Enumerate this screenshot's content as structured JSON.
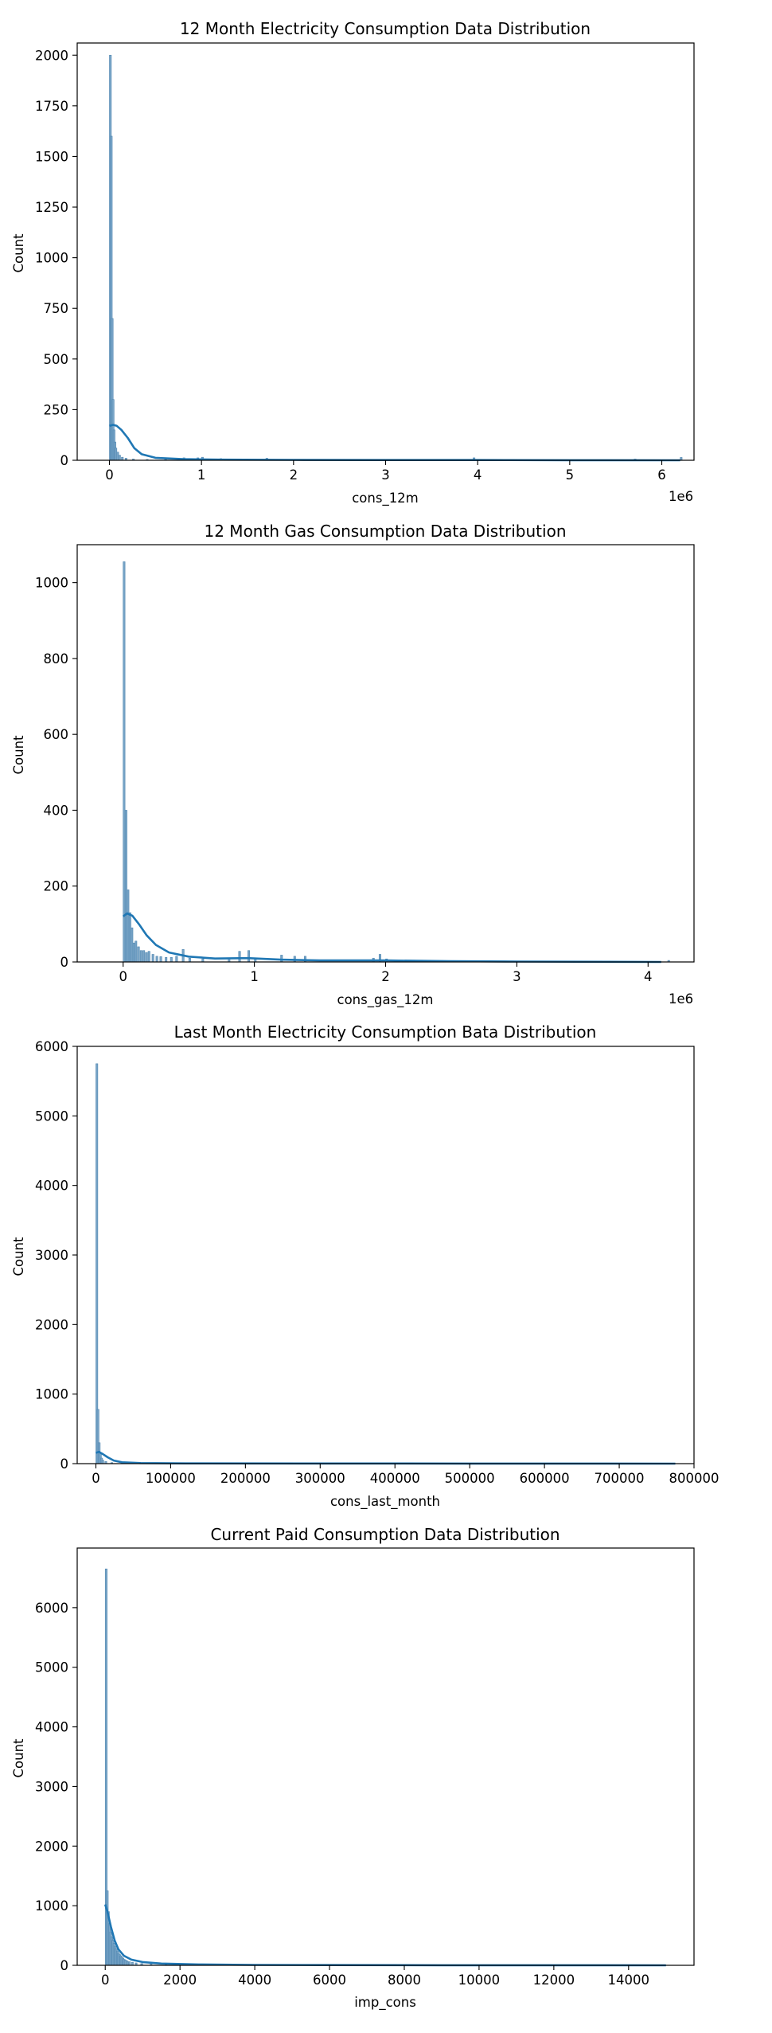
{
  "chart_data": [
    {
      "type": "histogram",
      "title": "12 Month Electricity Consumption Data Distribution",
      "xlabel": "cons_12m",
      "ylabel": "Count",
      "offset_label": "1e6",
      "xlim": [
        -0.35,
        6.35
      ],
      "ylim": [
        0,
        2060
      ],
      "xticks": [
        0,
        1,
        2,
        3,
        4,
        5,
        6
      ],
      "xtick_labels": [
        "0",
        "1",
        "2",
        "3",
        "4",
        "5",
        "6"
      ],
      "yticks": [
        0,
        250,
        500,
        750,
        1000,
        1250,
        1500,
        1750,
        2000
      ],
      "ytick_labels": [
        "0",
        "250",
        "500",
        "750",
        "1000",
        "1250",
        "1500",
        "1750",
        "2000"
      ],
      "bins": [
        {
          "x": 0.0,
          "count": 2000
        },
        {
          "x": 0.01,
          "count": 1600
        },
        {
          "x": 0.02,
          "count": 700
        },
        {
          "x": 0.03,
          "count": 300
        },
        {
          "x": 0.04,
          "count": 150
        },
        {
          "x": 0.05,
          "count": 90
        },
        {
          "x": 0.06,
          "count": 60
        },
        {
          "x": 0.08,
          "count": 40
        },
        {
          "x": 0.1,
          "count": 25
        },
        {
          "x": 0.13,
          "count": 15
        },
        {
          "x": 0.17,
          "count": 10
        },
        {
          "x": 0.25,
          "count": 6
        },
        {
          "x": 0.4,
          "count": 4
        },
        {
          "x": 0.6,
          "count": 6
        },
        {
          "x": 0.8,
          "count": 12
        },
        {
          "x": 0.95,
          "count": 12
        },
        {
          "x": 1.0,
          "count": 15
        },
        {
          "x": 1.2,
          "count": 8
        },
        {
          "x": 1.7,
          "count": 10
        },
        {
          "x": 3.95,
          "count": 12
        },
        {
          "x": 5.7,
          "count": 6
        },
        {
          "x": 6.2,
          "count": 14
        }
      ],
      "kde": [
        [
          0,
          170
        ],
        [
          0.04,
          175
        ],
        [
          0.08,
          170
        ],
        [
          0.13,
          150
        ],
        [
          0.2,
          110
        ],
        [
          0.27,
          60
        ],
        [
          0.35,
          30
        ],
        [
          0.5,
          12
        ],
        [
          0.8,
          6
        ],
        [
          1.2,
          3
        ],
        [
          2,
          2
        ],
        [
          3,
          1
        ],
        [
          4,
          1
        ],
        [
          5,
          0.5
        ],
        [
          6.2,
          0
        ]
      ]
    },
    {
      "type": "histogram",
      "title": "12 Month Gas Consumption Data Distribution",
      "xlabel": "cons_gas_12m",
      "ylabel": "Count",
      "offset_label": "1e6",
      "xlim": [
        -0.35,
        4.35
      ],
      "ylim": [
        0,
        1100
      ],
      "xticks": [
        0,
        1,
        2,
        3,
        4
      ],
      "xtick_labels": [
        "0",
        "1",
        "2",
        "3",
        "4"
      ],
      "yticks": [
        0,
        200,
        400,
        600,
        800,
        1000
      ],
      "ytick_labels": [
        "0",
        "200",
        "400",
        "600",
        "800",
        "1000"
      ],
      "bins": [
        {
          "x": 0.0,
          "count": 1055
        },
        {
          "x": 0.015,
          "count": 400
        },
        {
          "x": 0.03,
          "count": 190
        },
        {
          "x": 0.045,
          "count": 130
        },
        {
          "x": 0.06,
          "count": 90
        },
        {
          "x": 0.075,
          "count": 50
        },
        {
          "x": 0.09,
          "count": 55
        },
        {
          "x": 0.11,
          "count": 40
        },
        {
          "x": 0.13,
          "count": 30
        },
        {
          "x": 0.15,
          "count": 30
        },
        {
          "x": 0.17,
          "count": 25
        },
        {
          "x": 0.19,
          "count": 28
        },
        {
          "x": 0.22,
          "count": 20
        },
        {
          "x": 0.25,
          "count": 15
        },
        {
          "x": 0.28,
          "count": 14
        },
        {
          "x": 0.32,
          "count": 12
        },
        {
          "x": 0.36,
          "count": 12
        },
        {
          "x": 0.4,
          "count": 15
        },
        {
          "x": 0.45,
          "count": 33
        },
        {
          "x": 0.5,
          "count": 10
        },
        {
          "x": 0.6,
          "count": 8
        },
        {
          "x": 0.8,
          "count": 6
        },
        {
          "x": 0.88,
          "count": 28
        },
        {
          "x": 0.95,
          "count": 30
        },
        {
          "x": 1.0,
          "count": 10
        },
        {
          "x": 1.2,
          "count": 18
        },
        {
          "x": 1.3,
          "count": 15
        },
        {
          "x": 1.38,
          "count": 15
        },
        {
          "x": 1.9,
          "count": 10
        },
        {
          "x": 1.95,
          "count": 20
        },
        {
          "x": 2.0,
          "count": 8
        },
        {
          "x": 4.15,
          "count": 4
        }
      ],
      "kde": [
        [
          0,
          120
        ],
        [
          0.03,
          128
        ],
        [
          0.07,
          122
        ],
        [
          0.12,
          100
        ],
        [
          0.18,
          70
        ],
        [
          0.25,
          45
        ],
        [
          0.35,
          25
        ],
        [
          0.5,
          14
        ],
        [
          0.7,
          9
        ],
        [
          0.95,
          10
        ],
        [
          1.2,
          6
        ],
        [
          1.5,
          4
        ],
        [
          2.0,
          4
        ],
        [
          2.5,
          2
        ],
        [
          3,
          1
        ],
        [
          4.1,
          0
        ]
      ]
    },
    {
      "type": "histogram",
      "title": "Last Month Electricity Consumption Bata Distribution",
      "xlabel": "cons_last_month",
      "ylabel": "Count",
      "offset_label": "",
      "xlim": [
        -25000,
        800000
      ],
      "ylim": [
        0,
        6000
      ],
      "xticks": [
        0,
        100000,
        200000,
        300000,
        400000,
        500000,
        600000,
        700000,
        800000
      ],
      "xtick_labels": [
        "0",
        "100000",
        "200000",
        "300000",
        "400000",
        "500000",
        "600000",
        "700000",
        "800000"
      ],
      "yticks": [
        0,
        1000,
        2000,
        3000,
        4000,
        5000,
        6000
      ],
      "ytick_labels": [
        "0",
        "1000",
        "2000",
        "3000",
        "4000",
        "5000",
        "6000"
      ],
      "bins": [
        {
          "x": 0,
          "count": 5750
        },
        {
          "x": 1600,
          "count": 780
        },
        {
          "x": 3200,
          "count": 300
        },
        {
          "x": 4800,
          "count": 150
        },
        {
          "x": 6400,
          "count": 80
        },
        {
          "x": 8000,
          "count": 50
        },
        {
          "x": 12000,
          "count": 30
        },
        {
          "x": 20000,
          "count": 15
        }
      ],
      "kde": [
        [
          0,
          155
        ],
        [
          4000,
          170
        ],
        [
          9000,
          140
        ],
        [
          16000,
          90
        ],
        [
          24000,
          45
        ],
        [
          35000,
          20
        ],
        [
          60000,
          8
        ],
        [
          120000,
          4
        ],
        [
          300000,
          2
        ],
        [
          500000,
          1
        ],
        [
          775000,
          0
        ]
      ]
    },
    {
      "type": "histogram",
      "title": "Current Paid Consumption Data Distribution",
      "xlabel": "imp_cons",
      "ylabel": "Count",
      "offset_label": "",
      "xlim": [
        -750,
        15750
      ],
      "ylim": [
        0,
        7000
      ],
      "xticks": [
        0,
        2000,
        4000,
        6000,
        8000,
        10000,
        12000,
        14000
      ],
      "xtick_labels": [
        "0",
        "2000",
        "4000",
        "6000",
        "8000",
        "10000",
        "12000",
        "14000"
      ],
      "yticks": [
        0,
        1000,
        2000,
        3000,
        4000,
        5000,
        6000
      ],
      "ytick_labels": [
        "0",
        "1000",
        "2000",
        "3000",
        "4000",
        "5000",
        "6000"
      ],
      "bins": [
        {
          "x": 0,
          "count": 6650
        },
        {
          "x": 30,
          "count": 1250
        },
        {
          "x": 60,
          "count": 900
        },
        {
          "x": 90,
          "count": 700
        },
        {
          "x": 120,
          "count": 560
        },
        {
          "x": 150,
          "count": 480
        },
        {
          "x": 180,
          "count": 420
        },
        {
          "x": 210,
          "count": 370
        },
        {
          "x": 240,
          "count": 320
        },
        {
          "x": 270,
          "count": 280
        },
        {
          "x": 300,
          "count": 240
        },
        {
          "x": 330,
          "count": 210
        },
        {
          "x": 360,
          "count": 180
        },
        {
          "x": 390,
          "count": 160
        },
        {
          "x": 420,
          "count": 140
        },
        {
          "x": 450,
          "count": 120
        },
        {
          "x": 480,
          "count": 100
        },
        {
          "x": 510,
          "count": 90
        },
        {
          "x": 560,
          "count": 75
        },
        {
          "x": 620,
          "count": 60
        },
        {
          "x": 700,
          "count": 50
        },
        {
          "x": 800,
          "count": 40
        },
        {
          "x": 950,
          "count": 30
        },
        {
          "x": 1200,
          "count": 20
        },
        {
          "x": 1600,
          "count": 12
        },
        {
          "x": 2200,
          "count": 8
        },
        {
          "x": 3000,
          "count": 5
        }
      ],
      "kde": [
        [
          0,
          1020
        ],
        [
          60,
          900
        ],
        [
          150,
          650
        ],
        [
          250,
          420
        ],
        [
          350,
          270
        ],
        [
          500,
          160
        ],
        [
          700,
          95
        ],
        [
          1000,
          55
        ],
        [
          1500,
          30
        ],
        [
          2500,
          15
        ],
        [
          4000,
          7
        ],
        [
          6000,
          4
        ],
        [
          9000,
          2
        ],
        [
          12000,
          1
        ],
        [
          15000,
          0
        ]
      ]
    }
  ]
}
